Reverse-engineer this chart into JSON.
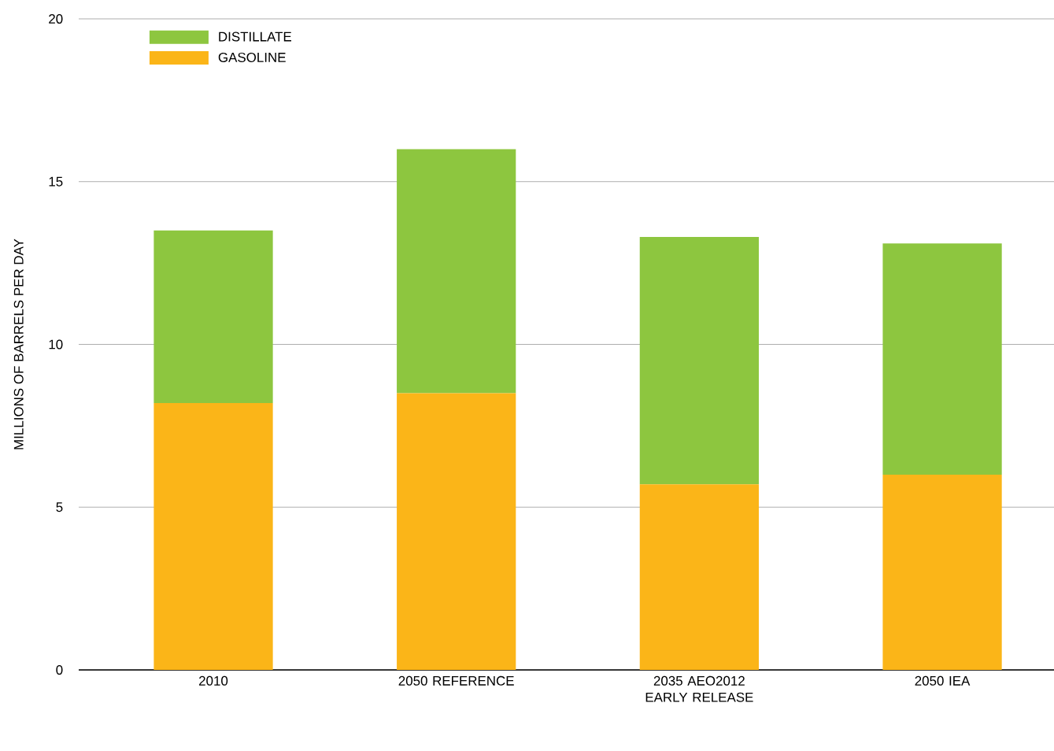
{
  "chart_data": {
    "type": "bar",
    "stacked": true,
    "ylabel": "MILLIONS OF BARRELS PER DAY",
    "categories": [
      "2010",
      "2050 REFERENCE",
      "2035 AEO2012 EARLY RELEASE",
      "2050 IEA"
    ],
    "series": [
      {
        "name": "GASOLINE",
        "color": "#fbb518",
        "values": [
          8.2,
          8.5,
          5.7,
          6.0
        ]
      },
      {
        "name": "DISTILLATE",
        "color": "#8dc63f",
        "values": [
          5.3,
          7.5,
          7.6,
          7.1
        ]
      }
    ],
    "ylim": [
      0,
      20
    ],
    "yticks": [
      0,
      5,
      10,
      15,
      20
    ],
    "grid": "y",
    "legend": "top left"
  }
}
